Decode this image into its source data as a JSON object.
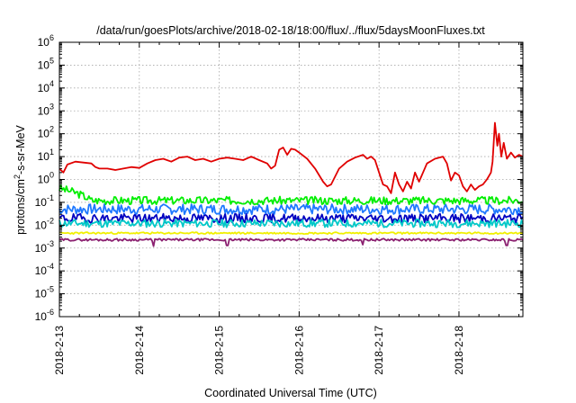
{
  "chart_data": {
    "type": "line",
    "title": "/data/run/goesPlots/archive/2018-02-18/18:00/flux/../flux/5daysMoonFluxes.txt",
    "xlabel": "Coordinated Universal Time (UTC)",
    "ylabel_parts": [
      "protons/cm",
      "2",
      "-s-sr-MeV"
    ],
    "y_scale": "log",
    "ylim_exp": [
      -6,
      6
    ],
    "y_ticks": [
      {
        "base": "10",
        "exp": "6"
      },
      {
        "base": "10",
        "exp": "5"
      },
      {
        "base": "10",
        "exp": "4"
      },
      {
        "base": "10",
        "exp": "3"
      },
      {
        "base": "10",
        "exp": "2"
      },
      {
        "base": "10",
        "exp": "1"
      },
      {
        "base": "10",
        "exp": "0"
      },
      {
        "base": "10",
        "exp": "-1"
      },
      {
        "base": "10",
        "exp": "-2"
      },
      {
        "base": "10",
        "exp": "-3"
      },
      {
        "base": "10",
        "exp": "-4"
      },
      {
        "base": "10",
        "exp": "-5"
      },
      {
        "base": "10",
        "exp": "-6"
      }
    ],
    "x_ticks": [
      "2018-2-13",
      "2018-2-14",
      "2018-2-15",
      "2018-2-16",
      "2018-2-17",
      "2018-2-18"
    ],
    "xlim_days": [
      0,
      5.8
    ],
    "grid": true,
    "series": [
      {
        "color": "#e00000",
        "points": [
          [
            0.0,
            3.0
          ],
          [
            0.05,
            2.0
          ],
          [
            0.1,
            4.5
          ],
          [
            0.2,
            6.0
          ],
          [
            0.3,
            5.5
          ],
          [
            0.4,
            5.0
          ],
          [
            0.45,
            3.5
          ],
          [
            0.5,
            3.0
          ],
          [
            0.6,
            3.0
          ],
          [
            0.7,
            2.6
          ],
          [
            0.8,
            3.0
          ],
          [
            0.9,
            3.5
          ],
          [
            1.0,
            3.2
          ],
          [
            1.1,
            5.0
          ],
          [
            1.2,
            7.0
          ],
          [
            1.3,
            8.0
          ],
          [
            1.4,
            6.0
          ],
          [
            1.5,
            9.0
          ],
          [
            1.6,
            10.0
          ],
          [
            1.7,
            7.0
          ],
          [
            1.8,
            8.0
          ],
          [
            1.9,
            6.0
          ],
          [
            2.0,
            8.0
          ],
          [
            2.1,
            9.0
          ],
          [
            2.2,
            8.0
          ],
          [
            2.3,
            7.0
          ],
          [
            2.4,
            10.0
          ],
          [
            2.5,
            7.0
          ],
          [
            2.6,
            5.0
          ],
          [
            2.65,
            3.0
          ],
          [
            2.7,
            4.0
          ],
          [
            2.75,
            20.0
          ],
          [
            2.8,
            25.0
          ],
          [
            2.85,
            12.0
          ],
          [
            2.9,
            22.0
          ],
          [
            2.95,
            20.0
          ],
          [
            3.0,
            15.0
          ],
          [
            3.1,
            8.0
          ],
          [
            3.2,
            3.0
          ],
          [
            3.3,
            0.8
          ],
          [
            3.35,
            0.5
          ],
          [
            3.4,
            0.6
          ],
          [
            3.5,
            3.0
          ],
          [
            3.6,
            6.0
          ],
          [
            3.7,
            9.0
          ],
          [
            3.8,
            12.0
          ],
          [
            3.85,
            8.0
          ],
          [
            3.9,
            10.0
          ],
          [
            3.95,
            7.0
          ],
          [
            4.0,
            2.0
          ],
          [
            4.05,
            0.6
          ],
          [
            4.1,
            0.5
          ],
          [
            4.15,
            0.25
          ],
          [
            4.2,
            2.0
          ],
          [
            4.25,
            0.6
          ],
          [
            4.3,
            0.3
          ],
          [
            4.35,
            0.8
          ],
          [
            4.4,
            0.4
          ],
          [
            4.45,
            2.0
          ],
          [
            4.5,
            0.8
          ],
          [
            4.6,
            5.0
          ],
          [
            4.7,
            8.0
          ],
          [
            4.8,
            10.0
          ],
          [
            4.85,
            5.0
          ],
          [
            4.9,
            0.9
          ],
          [
            4.95,
            2.0
          ],
          [
            5.0,
            1.5
          ],
          [
            5.05,
            0.5
          ],
          [
            5.1,
            0.3
          ],
          [
            5.15,
            0.6
          ],
          [
            5.2,
            0.35
          ],
          [
            5.25,
            0.5
          ],
          [
            5.3,
            0.6
          ],
          [
            5.35,
            1.0
          ],
          [
            5.4,
            2.0
          ],
          [
            5.42,
            6.0
          ],
          [
            5.45,
            300.0
          ],
          [
            5.48,
            30.0
          ],
          [
            5.5,
            100.0
          ],
          [
            5.53,
            10.0
          ],
          [
            5.56,
            40.0
          ],
          [
            5.6,
            8.0
          ],
          [
            5.65,
            15.0
          ],
          [
            5.7,
            9.0
          ],
          [
            5.75,
            12.0
          ],
          [
            5.8,
            10.0
          ]
        ]
      },
      {
        "color": "#00ee00",
        "base": 0.12,
        "amp": 0.35,
        "seed": 3,
        "ramp_start": 0.25
      },
      {
        "color": "#1e78ff",
        "base": 0.05,
        "amp": 0.45,
        "seed": 7
      },
      {
        "color": "#00c8c8",
        "base": 0.012,
        "amp": 0.35,
        "seed": 11
      },
      {
        "color": "#0000c0",
        "base": 0.02,
        "amp": 0.4,
        "seed": 19
      },
      {
        "color": "#f0f000",
        "base": 0.0045,
        "amp": 0.08,
        "seed": 23
      },
      {
        "color": "#8b2070",
        "base": 0.0023,
        "amp": 0.1,
        "seed": 29,
        "dips": [
          [
            1.18,
            0.0012
          ],
          [
            2.1,
            0.0013
          ],
          [
            3.8,
            0.0014
          ],
          [
            5.6,
            0.0013
          ]
        ]
      }
    ]
  }
}
